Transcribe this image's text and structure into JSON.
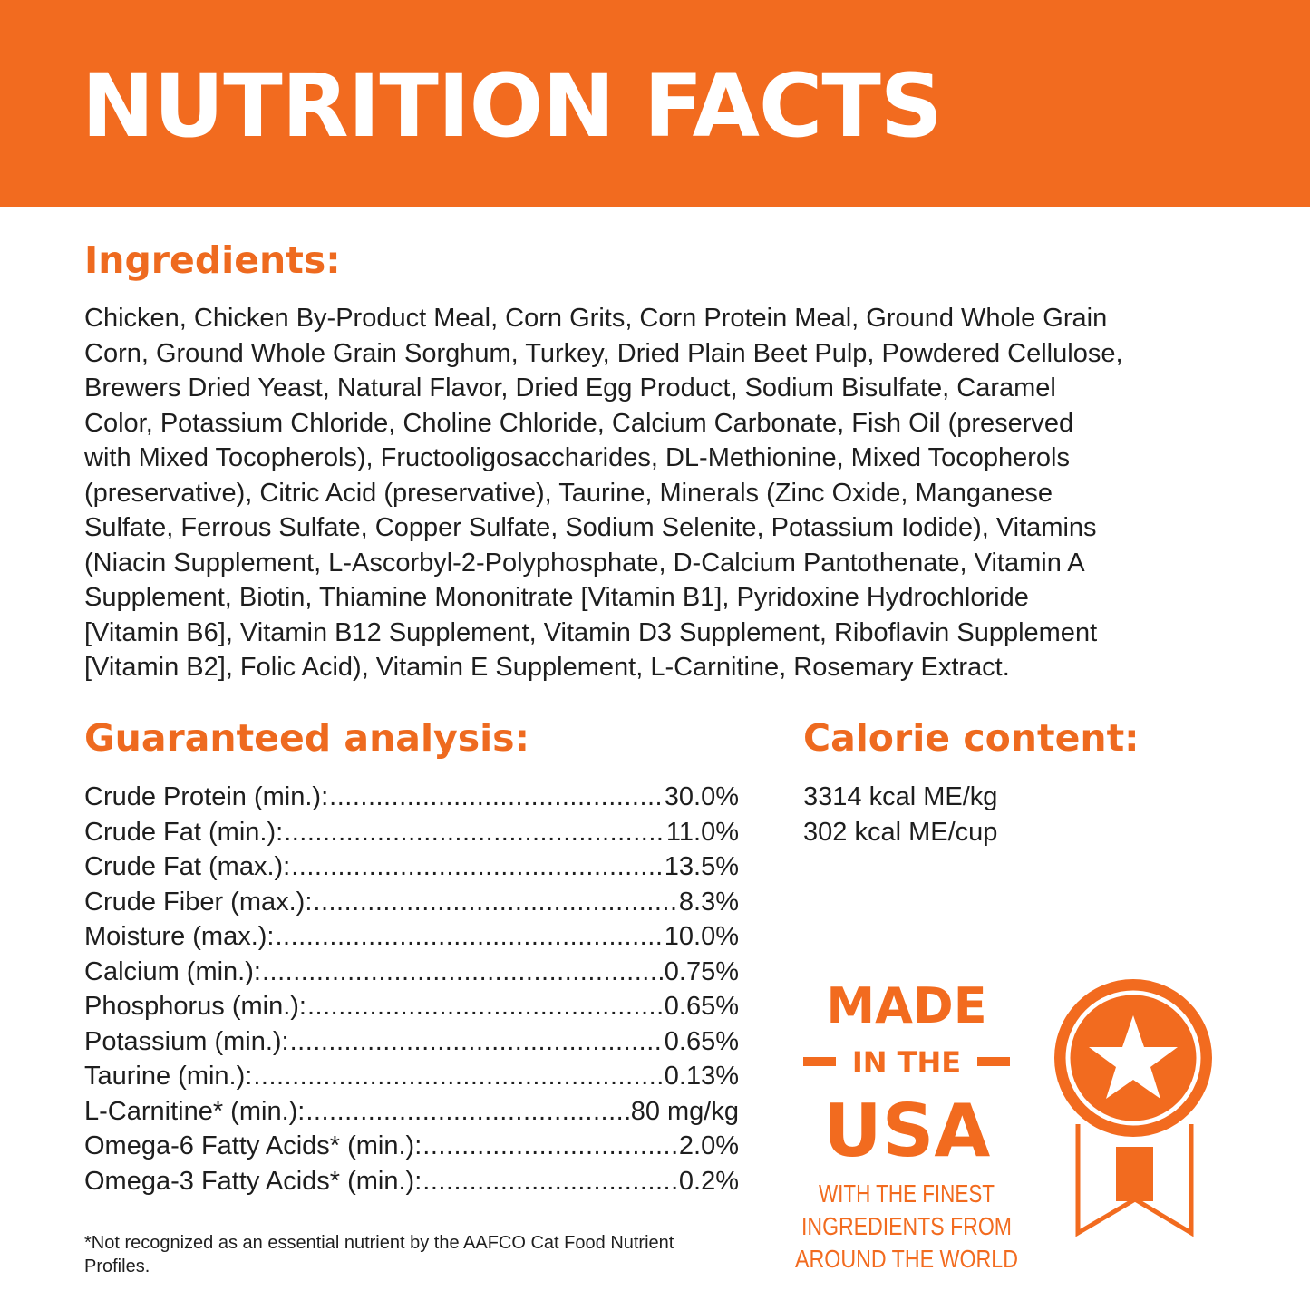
{
  "header": {
    "title": "NUTRITION FACTS"
  },
  "ingredients": {
    "heading": "Ingredients:",
    "lines": [
      "Chicken, Chicken By-Product Meal, Corn Grits, Corn Protein Meal, Ground Whole Grain",
      "Corn, Ground Whole Grain Sorghum, Turkey, Dried Plain Beet Pulp, Powdered Cellulose,",
      "Brewers Dried Yeast, Natural Flavor, Dried Egg Product, Sodium Bisulfate, Caramel",
      "Color, Potassium Chloride, Choline Chloride, Calcium Carbonate, Fish Oil (preserved",
      "with Mixed Tocopherols), Fructooligosaccharides, DL-Methionine, Mixed Tocopherols",
      "(preservative), Citric Acid (preservative), Taurine, Minerals (Zinc Oxide, Manganese",
      "Sulfate, Ferrous Sulfate, Copper Sulfate, Sodium Selenite, Potassium Iodide), Vitamins",
      "(Niacin Supplement, L-Ascorbyl-2-Polyphosphate, D-Calcium Pantothenate, Vitamin A",
      "Supplement, Biotin, Thiamine Mononitrate [Vitamin B1], Pyridoxine Hydrochloride",
      "[Vitamin B6], Vitamin B12 Supplement, Vitamin D3 Supplement, Riboflavin Supplement",
      "[Vitamin B2], Folic Acid), Vitamin E Supplement, L-Carnitine, Rosemary Extract."
    ]
  },
  "analysis": {
    "heading": "Guaranteed analysis:",
    "rows": [
      {
        "label": "Crude Protein (min.):",
        "value": "30.0%"
      },
      {
        "label": "Crude Fat (min.):",
        "value": "11.0%"
      },
      {
        "label": "Crude Fat (max.):",
        "value": "13.5%"
      },
      {
        "label": "Crude Fiber (max.):",
        "value": "8.3%"
      },
      {
        "label": "Moisture (max.):",
        "value": "10.0%"
      },
      {
        "label": "Calcium (min.):",
        "value": "0.75%"
      },
      {
        "label": "Phosphorus (min.):",
        "value": "0.65%"
      },
      {
        "label": "Potassium (min.):",
        "value": "0.65%"
      },
      {
        "label": "Taurine (min.):",
        "value": "0.13%"
      },
      {
        "label": "L-Carnitine* (min.):",
        "value": "80 mg/kg"
      },
      {
        "label": "Omega-6 Fatty Acids* (min.):",
        "value": "2.0%"
      },
      {
        "label": "Omega-3 Fatty Acids* (min.):",
        "value": "0.2%"
      }
    ],
    "footnote": "*Not recognized as an essential nutrient by the AAFCO Cat Food Nutrient Profiles."
  },
  "calorie": {
    "heading": "Calorie content:",
    "lines": [
      "3314 kcal ME/kg",
      "302 kcal ME/cup"
    ]
  },
  "badge": {
    "line1": "MADE",
    "line2": "IN THE",
    "line3": "USA",
    "line4": "WITH THE FINEST",
    "line5": "INGREDIENTS FROM",
    "line6": "AROUND THE WORLD",
    "icon": "award-ribbon-star-icon",
    "color": "#f26b1f"
  },
  "colors": {
    "brand": "#f26b1f",
    "text": "#1e1e1e",
    "background": "#ffffff"
  }
}
